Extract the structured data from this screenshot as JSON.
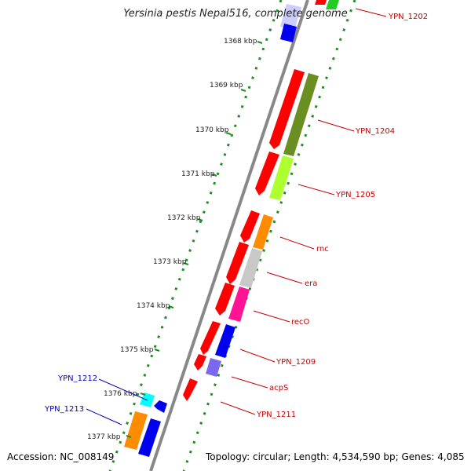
{
  "title": "Yersinia pestis Nepal516, complete genome",
  "footer": {
    "accession": "Accession: NC_008149",
    "summary": "Topology: circular; Length: 4,534,590 bp; Genes: 4,085"
  },
  "ticks": [
    "1368 kbp",
    "1369 kbp",
    "1370 kbp",
    "1371 kbp",
    "1372 kbp",
    "1373 kbp",
    "1374 kbp",
    "1375 kbp",
    "1376 kbp",
    "1377 kbp"
  ],
  "gene_labels": {
    "ypn1202": "YPN_1202",
    "ypn1204": "YPN_1204",
    "ypn1205": "YPN_1205",
    "rnc": "rnc",
    "era": "era",
    "reco": "recO",
    "ypn1209": "YPN_1209",
    "acps": "acpS",
    "ypn1211": "YPN_1211",
    "ypn1212": "YPN_1212",
    "ypn1213": "YPN_1213"
  },
  "colors": {
    "forward_label": "#cc0000",
    "reverse_label": "#0000bb",
    "tick": "#228b22",
    "backbone": "#888888"
  }
}
